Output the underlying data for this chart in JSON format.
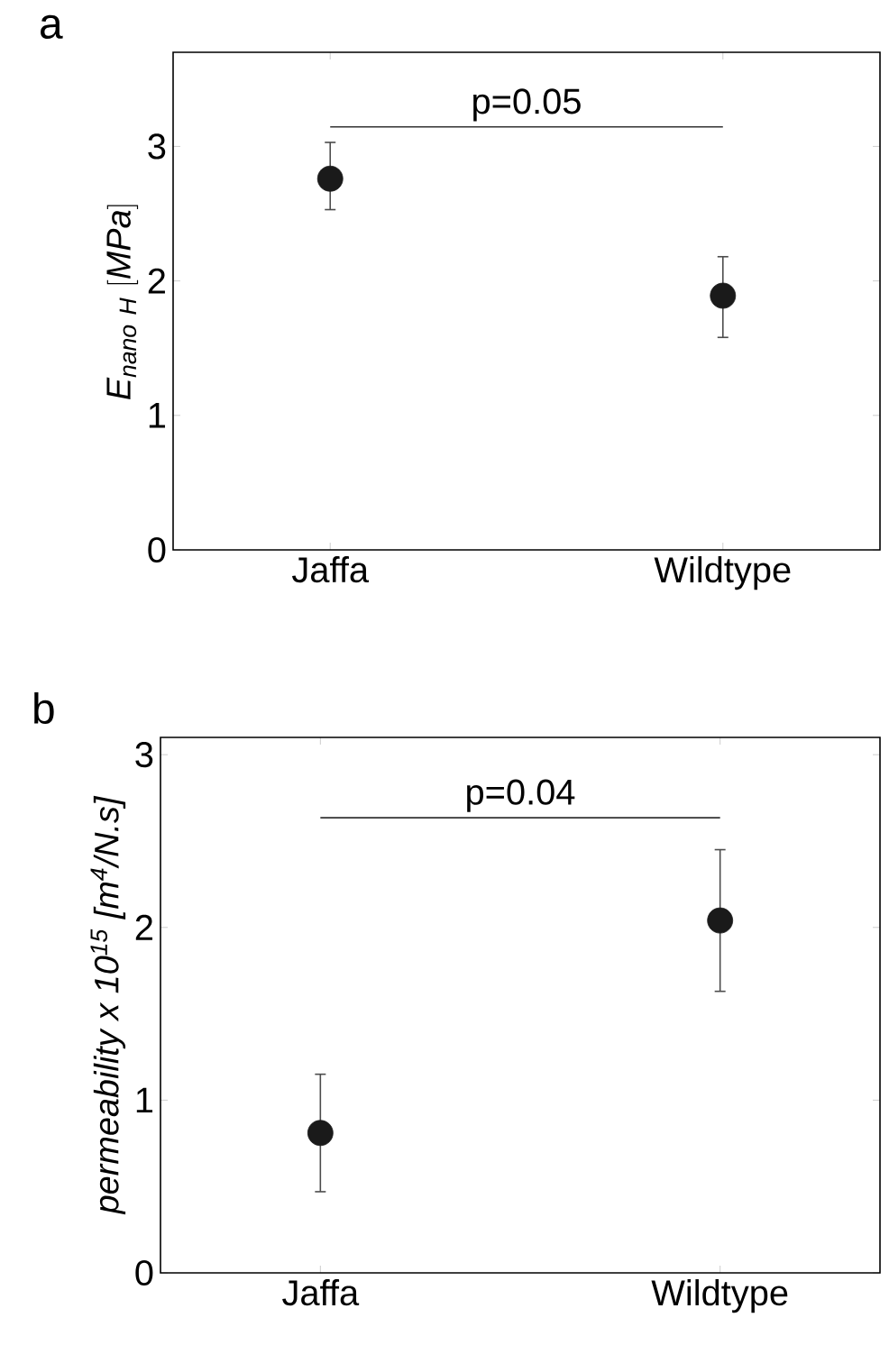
{
  "chart_data": [
    {
      "type": "scatter",
      "title": "a",
      "ylabel": "\\mathit{E_{nano\\ H}\\ [MPa]}",
      "categories": [
        "Jaffa",
        "Wildtype"
      ],
      "series": [
        {
          "color": "#1a1a1a",
          "values": [
            2.76,
            1.89
          ],
          "errors": [
            [
              2.53,
              3.03
            ],
            [
              1.58,
              2.18
            ]
          ]
        }
      ],
      "ylim": [
        0,
        3.7
      ],
      "yticks": [
        0,
        1,
        2,
        3
      ],
      "grid": false,
      "annotations": [
        "p=0.05"
      ]
    },
    {
      "type": "scatter",
      "title": "b",
      "ylabel": "permeability x 10$^{15}$ [m$^{4}$/N.s]",
      "categories": [
        "Jaffa",
        "Wildtype"
      ],
      "series": [
        {
          "color": "#1a1a1a",
          "values": [
            0.81,
            2.04
          ],
          "errors": [
            [
              0.47,
              1.15
            ],
            [
              1.63,
              2.45
            ]
          ]
        }
      ],
      "ylim": [
        0,
        3.1
      ],
      "yticks": [
        0,
        1,
        2,
        3
      ],
      "grid": false,
      "annotations": [
        "p=0.04"
      ]
    }
  ]
}
